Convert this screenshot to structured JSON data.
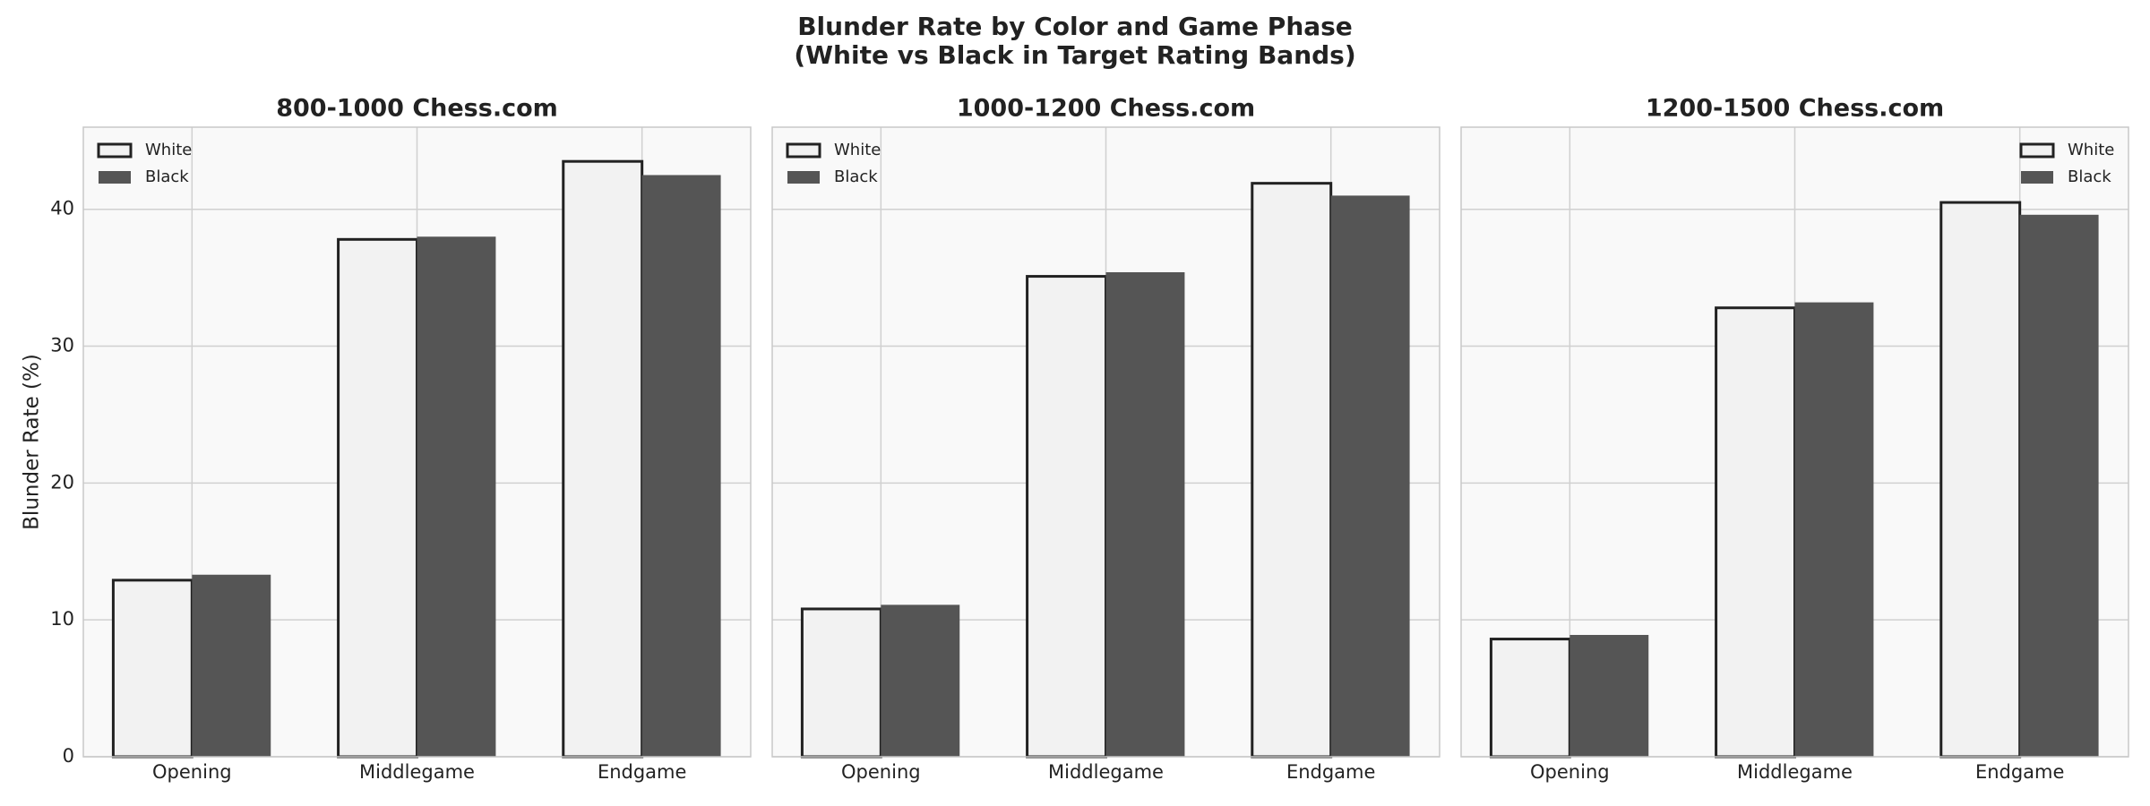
{
  "suptitle": [
    "Blunder Rate by Color and Game Phase",
    "(White vs Black in Target Rating Bands)"
  ],
  "chart_data": [
    {
      "type": "bar",
      "title": "800-1000 Chess.com",
      "ylabel": "Blunder Rate (%)",
      "categories": [
        "Opening",
        "Middlegame",
        "Endgame"
      ],
      "series": [
        {
          "name": "White",
          "color": "#f2f2f2",
          "edgecolor": "#222222",
          "values": [
            12.9,
            37.8,
            43.5
          ]
        },
        {
          "name": "Black",
          "color": "#555555",
          "values": [
            13.3,
            38.0,
            42.5
          ]
        }
      ],
      "ylim": [
        0,
        46
      ],
      "yticks": [
        0,
        10,
        20,
        30,
        40
      ],
      "grid": true,
      "legend": "upper left"
    },
    {
      "type": "bar",
      "title": "1000-1200 Chess.com",
      "categories": [
        "Opening",
        "Middlegame",
        "Endgame"
      ],
      "series": [
        {
          "name": "White",
          "color": "#f2f2f2",
          "edgecolor": "#222222",
          "values": [
            10.8,
            35.1,
            41.9
          ]
        },
        {
          "name": "Black",
          "color": "#555555",
          "values": [
            11.1,
            35.4,
            41.0
          ]
        }
      ],
      "ylim": [
        0,
        46
      ],
      "yticks": [
        0,
        10,
        20,
        30,
        40
      ],
      "grid": true,
      "legend": "upper left"
    },
    {
      "type": "bar",
      "title": "1200-1500 Chess.com",
      "categories": [
        "Opening",
        "Middlegame",
        "Endgame"
      ],
      "series": [
        {
          "name": "White",
          "color": "#f2f2f2",
          "edgecolor": "#222222",
          "values": [
            8.6,
            32.8,
            40.5
          ]
        },
        {
          "name": "Black",
          "color": "#555555",
          "values": [
            8.9,
            33.2,
            39.6
          ]
        }
      ],
      "ylim": [
        0,
        46
      ],
      "yticks": [
        0,
        10,
        20,
        30,
        40
      ],
      "grid": true,
      "legend": "upper right"
    }
  ]
}
